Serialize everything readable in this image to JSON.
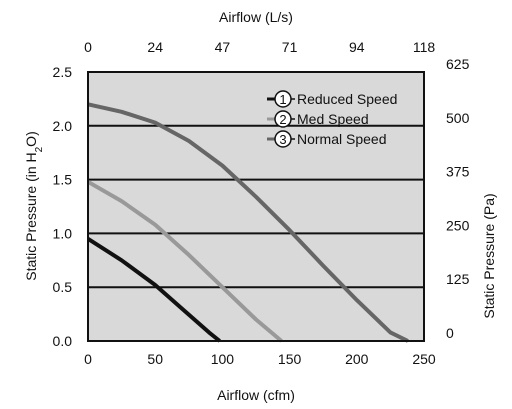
{
  "chart_data": {
    "type": "line",
    "x": {
      "label": "Airflow (cfm)",
      "range": [
        0,
        250
      ],
      "ticks": [
        "0",
        "50",
        "100",
        "150",
        "200",
        "250"
      ]
    },
    "x_top": {
      "label": "Airflow (L/s)",
      "ticks": [
        "0",
        "24",
        "47",
        "71",
        "94",
        "118"
      ]
    },
    "y": {
      "label_main": "Static Pressure (in H",
      "label_sub": "2",
      "label_end": "O)",
      "range": [
        0,
        2.5
      ],
      "ticks": [
        "0.0",
        "0.5",
        "1.0",
        "1.5",
        "2.0",
        "2.5"
      ]
    },
    "y_right": {
      "label": "Static Pressure (Pa)",
      "ticks": [
        "0",
        "125",
        "250",
        "375",
        "500",
        "625"
      ]
    },
    "grid": {
      "horizontal": true,
      "vertical": false
    },
    "legend_position": "top-right",
    "series": [
      {
        "name": "Reduced Speed",
        "key": "1",
        "color": "#111111",
        "x": [
          0,
          25,
          50,
          70,
          90,
          98
        ],
        "y": [
          0.95,
          0.75,
          0.52,
          0.3,
          0.08,
          0.0
        ]
      },
      {
        "name": "Med Speed",
        "key": "2",
        "color": "#999999",
        "x": [
          0,
          25,
          50,
          75,
          100,
          125,
          144
        ],
        "y": [
          1.48,
          1.3,
          1.08,
          0.8,
          0.5,
          0.2,
          0.0
        ]
      },
      {
        "name": "Normal Speed",
        "key": "3",
        "color": "#666666",
        "x": [
          0,
          25,
          50,
          75,
          100,
          125,
          150,
          175,
          200,
          225,
          238
        ],
        "y": [
          2.2,
          2.13,
          2.03,
          1.86,
          1.63,
          1.34,
          1.03,
          0.7,
          0.38,
          0.08,
          0.0
        ]
      }
    ]
  },
  "colors": {
    "plot_background": "#d9d9d9",
    "grid": "#111111",
    "frame": "#111111"
  }
}
